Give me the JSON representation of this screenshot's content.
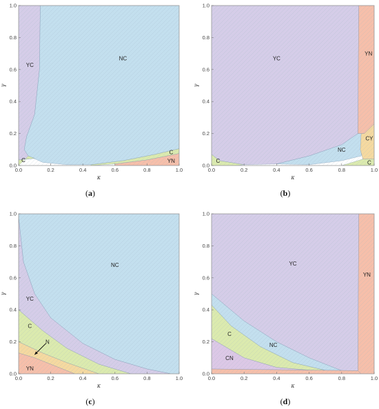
{
  "colors": {
    "NC": "#c3dfee",
    "YC": "#d5cde8",
    "YN": "#f6bfaa",
    "C": "#dbeaae",
    "CY": "#f5d9a0",
    "CN": "#dcc8e6",
    "N": "#f5d9a0",
    "frame": "#9a9a9a",
    "grid_hatch": "#b9c9d6"
  },
  "chart_data": [
    {
      "id": "a",
      "type": "area",
      "caption": "(a)",
      "xlabel": "κ",
      "ylabel": "γ",
      "xlim": [
        0,
        1
      ],
      "ylim": [
        0,
        1
      ],
      "xticks": [
        "0.0",
        "0.2",
        "0.4",
        "0.6",
        "0.8",
        "1.0"
      ],
      "yticks": [
        "0.0",
        "0.2",
        "0.4",
        "0.6",
        "0.8",
        "1.0"
      ],
      "regions": [
        {
          "name": "YC",
          "label": "YC",
          "color_key": "YC",
          "polygon": [
            [
              0,
              0.035
            ],
            [
              0.0,
              1.0
            ],
            [
              0.135,
              1.0
            ],
            [
              0.13,
              0.6
            ],
            [
              0.1,
              0.32
            ],
            [
              0.05,
              0.18
            ],
            [
              0.035,
              0.1
            ],
            [
              0.06,
              0.06
            ],
            [
              0.1,
              0.045
            ],
            [
              0.0,
              0.035
            ]
          ],
          "label_at": [
            0.07,
            0.63
          ]
        },
        {
          "name": "NC",
          "label": "NC",
          "color_key": "NC",
          "polygon": [
            [
              0.135,
              1.0
            ],
            [
              1.0,
              1.0
            ],
            [
              1.0,
              0.105
            ],
            [
              0.85,
              0.07
            ],
            [
              0.65,
              0.03
            ],
            [
              0.45,
              0.005
            ],
            [
              0.3,
              0.005
            ],
            [
              0.15,
              0.02
            ],
            [
              0.06,
              0.06
            ],
            [
              0.035,
              0.1
            ],
            [
              0.05,
              0.18
            ],
            [
              0.1,
              0.32
            ],
            [
              0.13,
              0.6
            ]
          ],
          "label_at": [
            0.65,
            0.67
          ]
        },
        {
          "name": "C-left",
          "label": "C",
          "color_key": "C",
          "polygon": [
            [
              0.0,
              0.0
            ],
            [
              0.0,
              0.035
            ],
            [
              0.1,
              0.045
            ],
            [
              0.06,
              0.06
            ],
            [
              0.02,
              0.02
            ],
            [
              0.0,
              0.0
            ]
          ],
          "label_at": [
            0.03,
            0.035
          ]
        },
        {
          "name": "C-right",
          "label": "C",
          "color_key": "C",
          "polygon": [
            [
              0.45,
              0.005
            ],
            [
              0.65,
              0.03
            ],
            [
              0.85,
              0.07
            ],
            [
              1.0,
              0.105
            ],
            [
              1.0,
              0.075
            ],
            [
              0.8,
              0.035
            ],
            [
              0.6,
              0.01
            ],
            [
              0.45,
              0.0
            ]
          ],
          "label_at": [
            0.95,
            0.085
          ]
        },
        {
          "name": "YN",
          "label": "YN",
          "color_key": "YN",
          "polygon": [
            [
              0.6,
              0.0
            ],
            [
              1.0,
              0.0
            ],
            [
              1.0,
              0.075
            ],
            [
              0.8,
              0.035
            ],
            [
              0.6,
              0.01
            ]
          ],
          "label_at": [
            0.95,
            0.03
          ]
        }
      ]
    },
    {
      "id": "b",
      "type": "area",
      "caption": "(b)",
      "xlabel": "κ",
      "ylabel": "γ",
      "xlim": [
        0,
        1
      ],
      "ylim": [
        0,
        1
      ],
      "xticks": [
        "0.0",
        "0.2",
        "0.4",
        "0.6",
        "0.8",
        "1.0"
      ],
      "yticks": [
        "0.0",
        "0.2",
        "0.4",
        "0.6",
        "0.8",
        "1.0"
      ],
      "regions": [
        {
          "name": "YC",
          "label": "YC",
          "color_key": "YC",
          "polygon": [
            [
              0.0,
              1.0
            ],
            [
              0.905,
              1.0
            ],
            [
              0.9,
              0.2
            ],
            [
              0.8,
              0.13
            ],
            [
              0.6,
              0.06
            ],
            [
              0.4,
              0.01
            ],
            [
              0.2,
              0.005
            ],
            [
              0.05,
              0.03
            ],
            [
              0.0,
              0.07
            ]
          ],
          "label_at": [
            0.4,
            0.67
          ]
        },
        {
          "name": "NC",
          "label": "NC",
          "color_key": "NC",
          "polygon": [
            [
              0.4,
              0.01
            ],
            [
              0.6,
              0.06
            ],
            [
              0.8,
              0.13
            ],
            [
              0.9,
              0.2
            ],
            [
              0.93,
              0.2
            ],
            [
              0.92,
              0.06
            ],
            [
              0.8,
              0.03
            ],
            [
              0.6,
              0.005
            ]
          ],
          "label_at": [
            0.8,
            0.1
          ]
        },
        {
          "name": "YN",
          "label": "YN",
          "color_key": "YN",
          "polygon": [
            [
              0.905,
              1.0
            ],
            [
              1.0,
              1.0
            ],
            [
              1.0,
              0.26
            ],
            [
              0.94,
              0.2
            ],
            [
              0.9,
              0.2
            ]
          ],
          "label_at": [
            0.965,
            0.7
          ]
        },
        {
          "name": "CY",
          "label": "CY",
          "color_key": "CY",
          "polygon": [
            [
              0.92,
              0.2
            ],
            [
              0.94,
              0.2
            ],
            [
              1.0,
              0.26
            ],
            [
              1.0,
              0.04
            ],
            [
              0.93,
              0.04
            ],
            [
              0.915,
              0.1
            ]
          ],
          "label_at": [
            0.97,
            0.17
          ]
        },
        {
          "name": "C-left",
          "label": "C",
          "color_key": "C",
          "polygon": [
            [
              0.0,
              0.0
            ],
            [
              0.0,
              0.07
            ],
            [
              0.05,
              0.03
            ],
            [
              0.2,
              0.005
            ],
            [
              0.15,
              0.0
            ]
          ],
          "label_at": [
            0.04,
            0.03
          ]
        },
        {
          "name": "C-right",
          "label": "C",
          "color_key": "C",
          "polygon": [
            [
              0.8,
              0.0
            ],
            [
              1.0,
              0.0
            ],
            [
              1.0,
              0.04
            ],
            [
              0.93,
              0.04
            ],
            [
              0.85,
              0.015
            ]
          ],
          "label_at": [
            0.97,
            0.02
          ]
        }
      ]
    },
    {
      "id": "c",
      "type": "area",
      "caption": "(c)",
      "xlabel": "κ",
      "ylabel": "γ",
      "xlim": [
        0,
        1
      ],
      "ylim": [
        0,
        1
      ],
      "xticks": [
        "0.0",
        "0.2",
        "0.4",
        "0.6",
        "0.8",
        "1.0"
      ],
      "yticks": [
        "0.0",
        "0.2",
        "0.4",
        "0.6",
        "0.8",
        "1.0"
      ],
      "regions": [
        {
          "name": "NC",
          "label": "NC",
          "color_key": "NC",
          "polygon": [
            [
              0.0,
              1.0
            ],
            [
              1.0,
              1.0
            ],
            [
              1.0,
              0.0
            ],
            [
              0.95,
              0.0
            ],
            [
              0.8,
              0.03
            ],
            [
              0.6,
              0.09
            ],
            [
              0.4,
              0.19
            ],
            [
              0.2,
              0.35
            ],
            [
              0.1,
              0.5
            ],
            [
              0.03,
              0.7
            ],
            [
              0.0,
              0.98
            ]
          ],
          "label_at": [
            0.6,
            0.68
          ]
        },
        {
          "name": "YC",
          "label": "YC",
          "color_key": "YC",
          "polygon": [
            [
              0.0,
              0.98
            ],
            [
              0.03,
              0.7
            ],
            [
              0.1,
              0.5
            ],
            [
              0.2,
              0.35
            ],
            [
              0.4,
              0.19
            ],
            [
              0.6,
              0.09
            ],
            [
              0.8,
              0.03
            ],
            [
              0.95,
              0.0
            ],
            [
              0.7,
              0.0
            ],
            [
              0.5,
              0.06
            ],
            [
              0.3,
              0.16
            ],
            [
              0.15,
              0.27
            ],
            [
              0.0,
              0.4
            ]
          ],
          "label_at": [
            0.07,
            0.47
          ]
        },
        {
          "name": "C",
          "label": "C",
          "color_key": "C",
          "polygon": [
            [
              0.0,
              0.4
            ],
            [
              0.15,
              0.27
            ],
            [
              0.3,
              0.16
            ],
            [
              0.5,
              0.06
            ],
            [
              0.7,
              0.0
            ],
            [
              0.5,
              0.0
            ],
            [
              0.3,
              0.07
            ],
            [
              0.15,
              0.13
            ],
            [
              0.0,
              0.2
            ]
          ],
          "label_at": [
            0.07,
            0.3
          ]
        },
        {
          "name": "N",
          "label": "N",
          "color_key": "N",
          "polygon": [
            [
              0.0,
              0.2
            ],
            [
              0.15,
              0.13
            ],
            [
              0.3,
              0.07
            ],
            [
              0.5,
              0.0
            ],
            [
              0.35,
              0.0
            ],
            [
              0.2,
              0.06
            ],
            [
              0.1,
              0.1
            ],
            [
              0.0,
              0.13
            ]
          ],
          "label_at": [
            0.18,
            0.2
          ]
        },
        {
          "name": "YN",
          "label": "YN",
          "color_key": "YN",
          "polygon": [
            [
              0.0,
              0.0
            ],
            [
              0.0,
              0.13
            ],
            [
              0.1,
              0.1
            ],
            [
              0.2,
              0.06
            ],
            [
              0.35,
              0.0
            ]
          ],
          "label_at": [
            0.07,
            0.035
          ]
        }
      ],
      "arrows": [
        {
          "from": [
            0.17,
            0.19
          ],
          "to": [
            0.1,
            0.12
          ]
        }
      ]
    },
    {
      "id": "d",
      "type": "area",
      "caption": "(d)",
      "xlabel": "κ",
      "ylabel": "γ",
      "xlim": [
        0,
        1
      ],
      "ylim": [
        0,
        1
      ],
      "xticks": [
        "0.0",
        "0.2",
        "0.4",
        "0.6",
        "0.8",
        "1.0"
      ],
      "yticks": [
        "0.0",
        "0.2",
        "0.4",
        "0.6",
        "0.8",
        "1.0"
      ],
      "regions": [
        {
          "name": "YC",
          "label": "YC",
          "color_key": "YC",
          "polygon": [
            [
              0.0,
              1.0
            ],
            [
              0.905,
              1.0
            ],
            [
              0.9,
              0.01
            ],
            [
              0.8,
              0.02
            ],
            [
              0.6,
              0.1
            ],
            [
              0.4,
              0.2
            ],
            [
              0.2,
              0.33
            ],
            [
              0.0,
              0.5
            ]
          ],
          "label_at": [
            0.5,
            0.69
          ]
        },
        {
          "name": "YN",
          "label": "YN",
          "color_key": "YN",
          "polygon": [
            [
              0.905,
              1.0
            ],
            [
              1.0,
              1.0
            ],
            [
              1.0,
              0.0
            ],
            [
              0.92,
              0.0
            ],
            [
              0.9,
              0.01
            ]
          ],
          "label_at": [
            0.955,
            0.62
          ]
        },
        {
          "name": "NC",
          "label": "NC",
          "color_key": "NC",
          "polygon": [
            [
              0.0,
              0.5
            ],
            [
              0.2,
              0.33
            ],
            [
              0.4,
              0.2
            ],
            [
              0.6,
              0.1
            ],
            [
              0.8,
              0.02
            ],
            [
              0.9,
              0.01
            ],
            [
              0.75,
              0.01
            ],
            [
              0.5,
              0.07
            ],
            [
              0.3,
              0.17
            ],
            [
              0.12,
              0.3
            ],
            [
              0.0,
              0.43
            ]
          ],
          "label_at": [
            0.38,
            0.18
          ]
        },
        {
          "name": "C",
          "label": "C",
          "color_key": "C",
          "polygon": [
            [
              0.0,
              0.43
            ],
            [
              0.12,
              0.3
            ],
            [
              0.3,
              0.17
            ],
            [
              0.5,
              0.07
            ],
            [
              0.75,
              0.01
            ],
            [
              0.4,
              0.04
            ],
            [
              0.2,
              0.1
            ],
            [
              0.0,
              0.22
            ]
          ],
          "label_at": [
            0.11,
            0.25
          ]
        },
        {
          "name": "CN",
          "label": "CN",
          "color_key": "CN",
          "polygon": [
            [
              0.0,
              0.22
            ],
            [
              0.2,
              0.1
            ],
            [
              0.4,
              0.04
            ],
            [
              0.75,
              0.01
            ],
            [
              0.9,
              0.01
            ],
            [
              0.9,
              0.02
            ],
            [
              0.0,
              0.03
            ]
          ],
          "label_at": [
            0.11,
            0.1
          ]
        },
        {
          "name": "YN-bottom",
          "color_key": "YN",
          "polygon": [
            [
              0.0,
              0.0
            ],
            [
              0.0,
              0.03
            ],
            [
              0.9,
              0.02
            ],
            [
              0.92,
              0.0
            ]
          ]
        }
      ]
    }
  ]
}
